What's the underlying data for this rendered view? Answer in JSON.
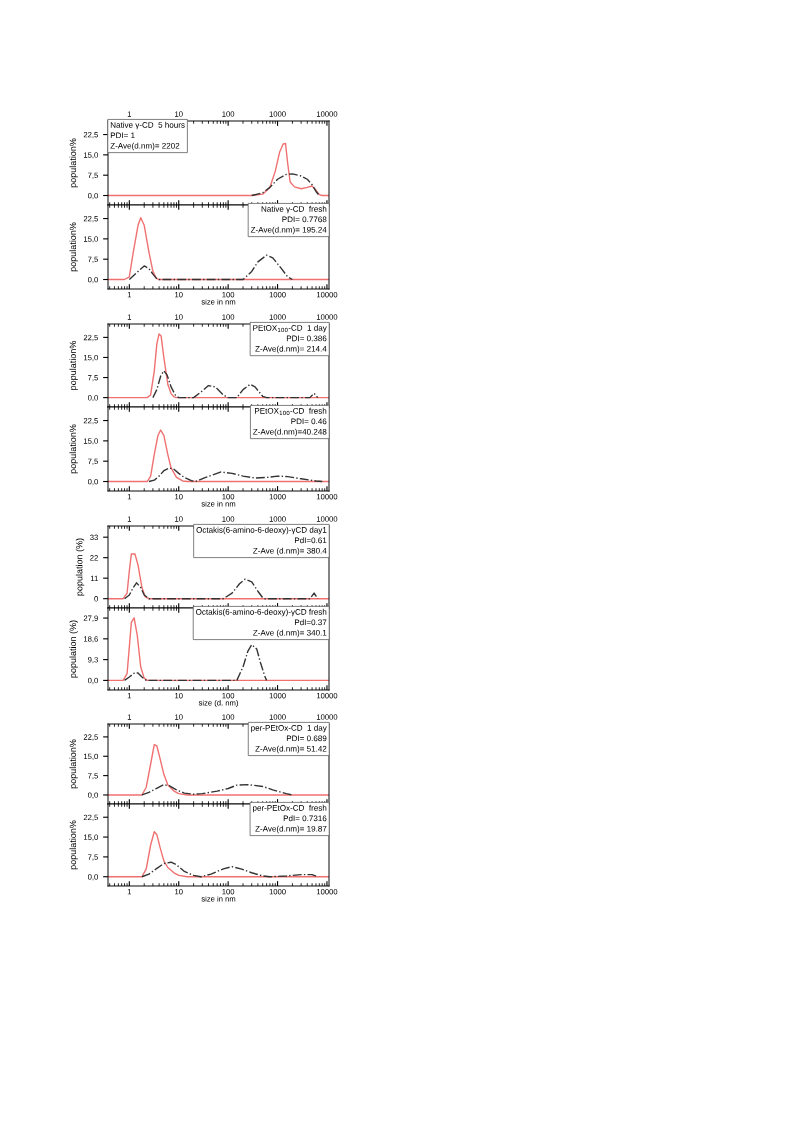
{
  "chart_data": [
    {
      "type": "line",
      "ylabel": "population%",
      "log": "x",
      "xlim": [
        0.37,
        11000
      ],
      "xticks": [
        1,
        10,
        100,
        1000,
        10000
      ],
      "ylim": [
        -3.5,
        27.5
      ],
      "yticks": [
        {
          "value": 0,
          "label": "0,0"
        },
        {
          "value": 7.5,
          "label": "7,5"
        },
        {
          "value": 15,
          "label": "15,0"
        },
        {
          "value": 22.5,
          "label": "22,5"
        }
      ],
      "annotations": [
        "Native γ-CD  5 hours",
        "PDI= 1",
        "Z-Ave(d.nm)= 2202"
      ],
      "series": [
        {
          "color": "#f07070",
          "line_style": "solid",
          "x": [
            0.37,
            300,
            500,
            700,
            900,
            1100,
            1300,
            1450,
            1600,
            1800,
            2200,
            3000,
            4000,
            5000,
            6000,
            7000,
            8000,
            11000
          ],
          "values": [
            0,
            0,
            0.5,
            3,
            9,
            16,
            19,
            19.2,
            12,
            5,
            3.2,
            2.5,
            3,
            3.5,
            2,
            0.3,
            0,
            0
          ]
        },
        {
          "color": "#333333",
          "line_style": "dashdot",
          "x": [
            300,
            500,
            700,
            1000,
            1500,
            2000,
            3000,
            4000,
            5000,
            6000,
            7000
          ],
          "values": [
            0,
            1,
            3,
            6,
            7.8,
            8,
            7.2,
            6,
            4,
            1.5,
            0
          ]
        }
      ]
    },
    {
      "type": "line",
      "ylabel": "population%",
      "xlabel": "size in nm",
      "log": "x",
      "xlim": [
        0.37,
        11000
      ],
      "xticks": [
        1,
        10,
        100,
        1000,
        10000
      ],
      "ylim": [
        -3.5,
        27.5
      ],
      "yticks": [
        {
          "value": 0,
          "label": "0,0"
        },
        {
          "value": 7.5,
          "label": "7,5"
        },
        {
          "value": 15,
          "label": "15,0"
        },
        {
          "value": 22.5,
          "label": "22,5"
        }
      ],
      "annotations": [
        "Native γ-CD  fresh",
        "PDI= 0.7768",
        "Z-Ave(d.nm)= 195.24"
      ],
      "series": [
        {
          "color": "#f07070",
          "line_style": "solid",
          "x": [
            0.37,
            0.8,
            1.0,
            1.2,
            1.5,
            1.7,
            2.0,
            2.5,
            3,
            3.5,
            4,
            11000
          ],
          "values": [
            0,
            0,
            1,
            10,
            20,
            22.8,
            20,
            10,
            3,
            0.5,
            0,
            0
          ]
        },
        {
          "color": "#333333",
          "line_style": "dashdot",
          "x": [
            1.0,
            1.4,
            2.0,
            2.5,
            3,
            3.5,
            4,
            200,
            300,
            400,
            600,
            800,
            1200,
            1600,
            2000
          ],
          "values": [
            0,
            2.5,
            5,
            4,
            2,
            0.5,
            0,
            0,
            3,
            6.5,
            9,
            8,
            4,
            1,
            0
          ]
        }
      ]
    },
    {
      "type": "line",
      "ylabel": "population%",
      "log": "x",
      "xlim": [
        0.37,
        11000
      ],
      "xticks": [
        1,
        10,
        100,
        1000,
        10000
      ],
      "ylim": [
        -3.5,
        27.5
      ],
      "yticks": [
        {
          "value": 0,
          "label": "0,0"
        },
        {
          "value": 7.5,
          "label": "7,5"
        },
        {
          "value": 15,
          "label": "15,0"
        },
        {
          "value": 22.5,
          "label": "22,5"
        }
      ],
      "annotations": [
        "PEtOX$_{100}$-CD  1 day",
        "PDI= 0.386",
        "Z-Ave(d.nm)= 214.4"
      ],
      "series": [
        {
          "color": "#f07070",
          "line_style": "solid",
          "x": [
            0.37,
            2.3,
            2.7,
            3.2,
            3.6,
            4,
            4.4,
            5,
            6,
            7,
            8,
            9,
            11000
          ],
          "values": [
            0,
            0,
            1,
            10,
            20,
            23.8,
            23,
            15,
            5,
            1.5,
            0.3,
            0,
            0
          ]
        },
        {
          "color": "#333333",
          "line_style": "dashdot",
          "x": [
            3,
            3.6,
            4.3,
            5,
            5.8,
            7,
            8.5,
            10,
            20,
            30,
            40,
            55,
            80,
            100,
            150,
            200,
            280,
            350,
            500,
            600,
            4500,
            5500,
            6500
          ],
          "values": [
            0,
            3,
            8,
            10,
            8.5,
            4,
            1,
            0,
            0,
            2.5,
            4.5,
            4,
            1,
            0,
            0,
            3,
            5,
            4,
            0.5,
            0,
            0,
            1.6,
            0
          ]
        }
      ]
    },
    {
      "type": "line",
      "ylabel": "population%",
      "xlabel": "size in nm",
      "log": "x",
      "xlim": [
        0.37,
        11000
      ],
      "xticks": [
        1,
        10,
        100,
        1000,
        10000
      ],
      "ylim": [
        -3.5,
        27.5
      ],
      "yticks": [
        {
          "value": 0,
          "label": "0,0"
        },
        {
          "value": 7.5,
          "label": "7,5"
        },
        {
          "value": 15,
          "label": "15,0"
        },
        {
          "value": 22.5,
          "label": "22,5"
        }
      ],
      "annotations": [
        "PEtOX$_{100}$-CD  fresh",
        "PDI= 0.46",
        "Z-Ave(d.nm)=40.248"
      ],
      "series": [
        {
          "color": "#f07070",
          "line_style": "solid",
          "x": [
            0.37,
            2.3,
            2.7,
            3.2,
            3.8,
            4.3,
            5,
            6,
            7,
            9,
            12,
            15,
            11000
          ],
          "values": [
            0,
            0,
            2,
            10,
            17,
            19,
            17,
            10,
            5,
            1.5,
            0.2,
            0,
            0
          ]
        },
        {
          "color": "#333333",
          "line_style": "dashdot",
          "x": [
            2.5,
            3.2,
            4,
            5,
            6.5,
            8,
            10,
            13,
            18,
            22,
            35,
            70,
            120,
            200,
            350,
            600,
            1000,
            1600,
            3000,
            6000,
            8000
          ],
          "values": [
            0,
            0.5,
            2,
            4,
            5,
            4.5,
            3,
            1.5,
            0.3,
            0,
            1.5,
            3.5,
            3,
            2,
            1.3,
            1.5,
            2,
            1.8,
            1,
            0.2,
            0
          ]
        }
      ]
    },
    {
      "type": "line",
      "ylabel": "population (%)",
      "log": "x",
      "xlim": [
        0.37,
        11000
      ],
      "xticks": [
        1,
        10,
        100,
        1000,
        10000
      ],
      "ylim": [
        -5,
        39
      ],
      "yticks": [
        0,
        11,
        22,
        33
      ],
      "annotations": [
        "Octakis(6-amino-6-deoxy)-γCD day1",
        "PdI=0.61",
        "Z-Ave (d.nm)= 380.4"
      ],
      "series": [
        {
          "color": "#f07070",
          "line_style": "solid",
          "x": [
            0.37,
            0.75,
            0.9,
            1.0,
            1.1,
            1.3,
            1.5,
            1.8,
            2.1,
            2.5,
            11000
          ],
          "values": [
            0,
            0,
            3,
            15,
            24,
            24,
            18,
            6,
            1,
            0,
            0
          ]
        },
        {
          "color": "#333333",
          "line_style": "dashdot",
          "x": [
            0.8,
            1.0,
            1.2,
            1.4,
            1.7,
            2.0,
            2.5,
            80,
            120,
            170,
            220,
            300,
            400,
            500,
            550,
            4500,
            5500,
            6500
          ],
          "values": [
            0,
            2,
            6,
            8.5,
            6,
            2,
            0,
            0,
            3,
            8,
            10.5,
            9,
            4,
            0.5,
            0,
            0,
            3,
            0
          ]
        }
      ]
    },
    {
      "type": "line",
      "ylabel": "population (%)",
      "xlabel": "size (d. nm)",
      "log": "x",
      "xlim": [
        0.37,
        11000
      ],
      "xticks": [
        1,
        10,
        100,
        1000,
        10000
      ],
      "ylim": [
        -4.3,
        32.4
      ],
      "yticks": [
        {
          "value": 0,
          "label": "0,0"
        },
        {
          "value": 9.3,
          "label": "9,3"
        },
        {
          "value": 18.6,
          "label": "18,6"
        },
        {
          "value": 27.9,
          "label": "27,9"
        }
      ],
      "annotations": [
        "Octakis(6-amino-6-deoxy)-γCD fresh",
        "PdI=0.37",
        "Z-Ave (d.nm)= 340.1"
      ],
      "series": [
        {
          "color": "#f07070",
          "line_style": "solid",
          "x": [
            0.37,
            0.75,
            0.9,
            1.0,
            1.1,
            1.25,
            1.45,
            1.7,
            2.0,
            2.3,
            11000
          ],
          "values": [
            0,
            0,
            3,
            15,
            26,
            28,
            20,
            6,
            1,
            0,
            0
          ]
        },
        {
          "color": "#333333",
          "line_style": "dashdot",
          "x": [
            0.8,
            1.0,
            1.3,
            1.5,
            1.8,
            2.2,
            150,
            200,
            250,
            300,
            380,
            450,
            550,
            600
          ],
          "values": [
            0,
            1.5,
            3.5,
            3.3,
            1.5,
            0,
            0,
            6,
            13,
            16,
            14,
            8,
            2,
            0
          ]
        }
      ]
    },
    {
      "type": "line",
      "ylabel": "population%",
      "log": "x",
      "xlim": [
        0.37,
        11000
      ],
      "xticks": [
        1,
        10,
        100,
        1000,
        10000
      ],
      "ylim": [
        -3.5,
        27.5
      ],
      "yticks": [
        {
          "value": 0,
          "label": "0,0"
        },
        {
          "value": 7.5,
          "label": "7,5"
        },
        {
          "value": 15,
          "label": "15,0"
        },
        {
          "value": 22.5,
          "label": "22,5"
        }
      ],
      "annotations": [
        "per-PEtOx-CD  1 day",
        "PDI= 0.689",
        "Z-Ave(d.nm)= 51.42"
      ],
      "series": [
        {
          "color": "#f07070",
          "line_style": "solid",
          "x": [
            0.37,
            1.8,
            2.2,
            2.7,
            3.2,
            3.6,
            4.2,
            5,
            6,
            8,
            10,
            15,
            11000
          ],
          "values": [
            0,
            0,
            3,
            12,
            19.5,
            19,
            14,
            8,
            4,
            1.5,
            0.5,
            0,
            0
          ]
        },
        {
          "color": "#333333",
          "line_style": "dashdot",
          "x": [
            1.8,
            2.5,
            3.5,
            5,
            6.5,
            9,
            13,
            20,
            30,
            60,
            100,
            150,
            250,
            500,
            800,
            1500,
            2000
          ],
          "values": [
            0,
            1,
            2.5,
            4,
            3.5,
            2,
            0.7,
            0.3,
            0.5,
            1.5,
            2.5,
            3.8,
            4,
            3.3,
            2,
            0.5,
            0
          ]
        }
      ]
    },
    {
      "type": "line",
      "ylabel": "population%",
      "xlabel": "size in nm",
      "log": "x",
      "xlim": [
        0.37,
        11000
      ],
      "xticks": [
        1,
        10,
        100,
        1000,
        10000
      ],
      "ylim": [
        -3.5,
        27.5
      ],
      "yticks": [
        {
          "value": 0,
          "label": "0,0"
        },
        {
          "value": 7.5,
          "label": "7,5"
        },
        {
          "value": 15,
          "label": "15,0"
        },
        {
          "value": 22.5,
          "label": "22,5"
        }
      ],
      "annotations": [
        "per-PEtOx-CD  fresh",
        "PdI= 0.7316",
        "Z-Ave(d.nm)= 19.87"
      ],
      "series": [
        {
          "color": "#f07070",
          "line_style": "solid",
          "x": [
            0.37,
            1.8,
            2.2,
            2.7,
            3.2,
            3.6,
            4.2,
            5,
            6,
            8,
            10,
            15,
            11000
          ],
          "values": [
            0,
            0,
            3,
            12,
            17,
            16,
            11,
            6,
            3.5,
            1.5,
            0.5,
            0,
            0
          ]
        },
        {
          "color": "#333333",
          "line_style": "dashdot",
          "x": [
            1.8,
            2.5,
            3.5,
            5,
            7,
            9,
            13,
            20,
            28,
            45,
            80,
            120,
            180,
            300,
            500,
            700,
            1500,
            3000,
            5000,
            6500
          ],
          "values": [
            0,
            1,
            3,
            5,
            5.5,
            4.5,
            2,
            0.5,
            0,
            1,
            3,
            3.8,
            3,
            1.5,
            0.3,
            0,
            0.3,
            0.8,
            0.8,
            0
          ]
        }
      ]
    }
  ]
}
